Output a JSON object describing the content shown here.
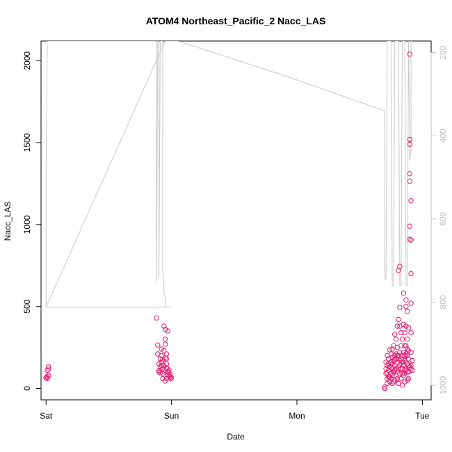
{
  "chart_data": {
    "type": "scatter",
    "title": "ATOM4 Northeast_Pacific_2 Nacc_LAS",
    "xlabel": "Date",
    "ylabel": "Nacc_LAS",
    "x_unit": "days from Sat 00:00",
    "xlim": [
      -0.04,
      3.07
    ],
    "ylim": [
      -70,
      2120
    ],
    "x_ticks": [
      {
        "value": 0,
        "label": "Sat"
      },
      {
        "value": 1,
        "label": "Sun"
      },
      {
        "value": 2,
        "label": "Mon"
      },
      {
        "value": 3,
        "label": "Tue"
      }
    ],
    "y_ticks": [
      0,
      500,
      1000,
      1500,
      2000
    ],
    "y2_ticks": [
      200,
      400,
      600,
      800,
      1000
    ],
    "y2_reversed": true,
    "y2_lim": [
      1035,
      172
    ],
    "series": [
      {
        "kind": "points",
        "color": "#e8196e",
        "points": [
          [
            0.0,
            66
          ],
          [
            0.01,
            72
          ],
          [
            0.01,
            60
          ],
          [
            0.02,
            80
          ],
          [
            0.02,
            118
          ],
          [
            0.02,
            132
          ],
          [
            0.0,
            64
          ],
          [
            0.01,
            110
          ],
          [
            0.88,
            430
          ],
          [
            0.89,
            265
          ],
          [
            0.89,
            210
          ],
          [
            0.9,
            110
          ],
          [
            0.9,
            150
          ],
          [
            0.9,
            100
          ],
          [
            0.91,
            180
          ],
          [
            0.91,
            95
          ],
          [
            0.91,
            130
          ],
          [
            0.92,
            240
          ],
          [
            0.92,
            160
          ],
          [
            0.92,
            200
          ],
          [
            0.93,
            175
          ],
          [
            0.93,
            90
          ],
          [
            0.93,
            120
          ],
          [
            0.94,
            380
          ],
          [
            0.94,
            230
          ],
          [
            0.94,
            140
          ],
          [
            0.95,
            360
          ],
          [
            0.95,
            300
          ],
          [
            0.95,
            270
          ],
          [
            0.95,
            185
          ],
          [
            0.96,
            210
          ],
          [
            0.96,
            150
          ],
          [
            0.96,
            125
          ],
          [
            0.96,
            180
          ],
          [
            0.96,
            60
          ],
          [
            0.97,
            350
          ],
          [
            0.97,
            120
          ],
          [
            0.97,
            100
          ],
          [
            0.97,
            80
          ],
          [
            0.98,
            75
          ],
          [
            0.98,
            95
          ],
          [
            0.98,
            110
          ],
          [
            0.99,
            60
          ],
          [
            0.99,
            85
          ],
          [
            0.99,
            70
          ],
          [
            1.0,
            65
          ],
          [
            0.93,
            60
          ],
          [
            0.94,
            105
          ],
          [
            0.92,
            140
          ],
          [
            0.95,
            45
          ],
          [
            2.7,
            10
          ],
          [
            2.7,
            0
          ],
          [
            2.71,
            160
          ],
          [
            2.71,
            120
          ],
          [
            2.71,
            90
          ],
          [
            2.72,
            60
          ],
          [
            2.72,
            140
          ],
          [
            2.72,
            200
          ],
          [
            2.72,
            30
          ],
          [
            2.73,
            110
          ],
          [
            2.73,
            180
          ],
          [
            2.73,
            70
          ],
          [
            2.74,
            130
          ],
          [
            2.74,
            235
          ],
          [
            2.74,
            40
          ],
          [
            2.75,
            160
          ],
          [
            2.75,
            90
          ],
          [
            2.75,
            210
          ],
          [
            2.75,
            60
          ],
          [
            2.76,
            150
          ],
          [
            2.76,
            190
          ],
          [
            2.76,
            120
          ],
          [
            2.76,
            80
          ],
          [
            2.77,
            170
          ],
          [
            2.77,
            260
          ],
          [
            2.77,
            100
          ],
          [
            2.78,
            140
          ],
          [
            2.78,
            200
          ],
          [
            2.78,
            330
          ],
          [
            2.78,
            50
          ],
          [
            2.79,
            180
          ],
          [
            2.79,
            120
          ],
          [
            2.79,
            300
          ],
          [
            2.79,
            75
          ],
          [
            2.8,
            380
          ],
          [
            2.8,
            250
          ],
          [
            2.8,
            160
          ],
          [
            2.8,
            100
          ],
          [
            2.81,
            720
          ],
          [
            2.81,
            420
          ],
          [
            2.81,
            200
          ],
          [
            2.81,
            130
          ],
          [
            2.82,
            745
          ],
          [
            2.82,
            495
          ],
          [
            2.82,
            380
          ],
          [
            2.82,
            220
          ],
          [
            2.82,
            140
          ],
          [
            2.83,
            60
          ],
          [
            2.83,
            180
          ],
          [
            2.83,
            120
          ],
          [
            2.84,
            300
          ],
          [
            2.84,
            160
          ],
          [
            2.84,
            90
          ],
          [
            2.84,
            20
          ],
          [
            2.85,
            580
          ],
          [
            2.85,
            390
          ],
          [
            2.85,
            220
          ],
          [
            2.85,
            140
          ],
          [
            2.86,
            340
          ],
          [
            2.86,
            200
          ],
          [
            2.86,
            120
          ],
          [
            2.86,
            40
          ],
          [
            2.87,
            540
          ],
          [
            2.87,
            500
          ],
          [
            2.87,
            380
          ],
          [
            2.87,
            260
          ],
          [
            2.87,
            160
          ],
          [
            2.88,
            470
          ],
          [
            2.88,
            300
          ],
          [
            2.88,
            200
          ],
          [
            2.88,
            100
          ],
          [
            2.89,
            370
          ],
          [
            2.89,
            230
          ],
          [
            2.89,
            140
          ],
          [
            2.89,
            60
          ],
          [
            2.9,
            1520
          ],
          [
            2.9,
            1490
          ],
          [
            2.9,
            1310
          ],
          [
            2.9,
            1265
          ],
          [
            2.9,
            990
          ],
          [
            2.9,
            910
          ],
          [
            2.91,
            1145
          ],
          [
            2.91,
            905
          ],
          [
            2.91,
            700
          ],
          [
            2.91,
            520
          ],
          [
            2.91,
            340
          ],
          [
            2.91,
            220
          ],
          [
            2.91,
            140
          ],
          [
            2.92,
            170
          ],
          [
            2.92,
            110
          ],
          [
            2.9,
            2040
          ],
          [
            2.73,
            150
          ],
          [
            2.74,
            70
          ],
          [
            2.76,
            240
          ],
          [
            2.78,
            110
          ],
          [
            2.8,
            60
          ],
          [
            2.83,
            260
          ],
          [
            2.85,
            80
          ],
          [
            2.87,
            110
          ],
          [
            2.89,
            180
          ],
          [
            2.84,
            200
          ],
          [
            2.86,
            170
          ],
          [
            2.88,
            240
          ],
          [
            2.72,
            95
          ],
          [
            2.77,
            40
          ],
          [
            2.79,
            210
          ],
          [
            2.81,
            30
          ],
          [
            2.82,
            90
          ],
          [
            2.83,
            340
          ],
          [
            2.85,
            160
          ],
          [
            2.86,
            260
          ],
          [
            2.88,
            150
          ],
          [
            2.89,
            100
          ],
          [
            2.91,
            120
          ],
          [
            2.75,
            125
          ],
          [
            2.76,
            30
          ],
          [
            2.78,
            175
          ],
          [
            2.8,
            200
          ],
          [
            2.82,
            170
          ],
          [
            2.84,
            120
          ],
          [
            2.86,
            90
          ],
          [
            2.87,
            210
          ],
          [
            2.88,
            50
          ],
          [
            2.9,
            130
          ]
        ]
      },
      {
        "kind": "line",
        "axis": "right",
        "color": "#c8c8c8",
        "note": "secondary y axis (right, reversed)",
        "points": [
          [
            0.0,
            812
          ],
          [
            0.0,
            500
          ],
          [
            0.01,
            172
          ],
          [
            0.02,
            172
          ],
          [
            0.88,
            172
          ],
          [
            0.88,
            750
          ],
          [
            0.89,
            172
          ],
          [
            0.9,
            172
          ],
          [
            0.9,
            740
          ],
          [
            0.91,
            172
          ],
          [
            0.92,
            172
          ],
          [
            0.93,
            172
          ],
          [
            0.93,
            720
          ],
          [
            0.94,
            760
          ],
          [
            0.94,
            780
          ],
          [
            0.95,
            790
          ],
          [
            0.95,
            812
          ],
          [
            0.96,
            812
          ],
          [
            1.0,
            812
          ],
          [
            0.0,
            812
          ],
          [
            0.95,
            172
          ],
          [
            1.05,
            172
          ],
          [
            1.9,
            255
          ],
          [
            2.7,
            340
          ],
          [
            2.7,
            740
          ],
          [
            2.71,
            745
          ],
          [
            2.72,
            172
          ],
          [
            2.73,
            172
          ],
          [
            2.75,
            172
          ],
          [
            2.76,
            760
          ],
          [
            2.77,
            760
          ],
          [
            2.78,
            172
          ],
          [
            2.79,
            172
          ],
          [
            2.81,
            172
          ],
          [
            2.82,
            760
          ],
          [
            2.83,
            760
          ],
          [
            2.84,
            172
          ],
          [
            2.85,
            172
          ],
          [
            2.86,
            172
          ],
          [
            2.87,
            760
          ],
          [
            2.88,
            760
          ],
          [
            2.89,
            172
          ],
          [
            2.9,
            460
          ],
          [
            2.91,
            430
          ],
          [
            2.91,
            172
          ],
          [
            2.92,
            172
          ]
        ]
      }
    ]
  }
}
